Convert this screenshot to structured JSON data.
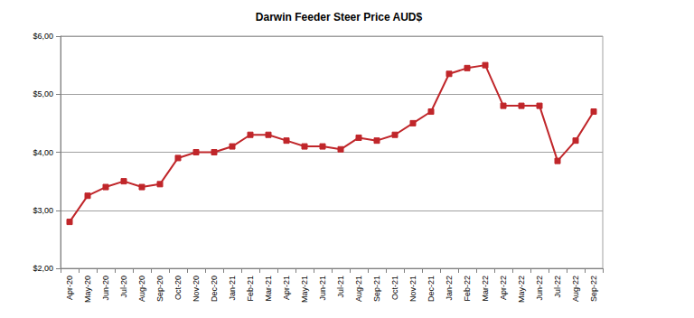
{
  "chart_data": {
    "type": "line",
    "title": "Darwin Feeder Steer Price AUD$",
    "categories": [
      "Apr-20",
      "May-20",
      "Jun-20",
      "Jul-20",
      "Aug-20",
      "Sep-20",
      "Oct-20",
      "Nov-20",
      "Dec-20",
      "Jan-21",
      "Feb-21",
      "Mar-21",
      "Apr-21",
      "May-21",
      "Jun-21",
      "Jul-21",
      "Aug-21",
      "Sep-21",
      "Oct-21",
      "Nov-21",
      "Dec-21",
      "Jan-22",
      "Feb-22",
      "Mar-22",
      "Apr-22",
      "May-22",
      "Jun-22",
      "Jul-22",
      "Aug-22",
      "Sep-22"
    ],
    "values": [
      2.8,
      3.25,
      3.4,
      3.5,
      3.4,
      3.45,
      3.9,
      4.0,
      4.0,
      4.1,
      4.3,
      4.3,
      4.2,
      4.1,
      4.1,
      4.05,
      4.25,
      4.2,
      4.3,
      4.5,
      4.7,
      5.35,
      5.45,
      5.5,
      4.8,
      4.8,
      4.8,
      3.85,
      4.2,
      4.7
    ],
    "color": "#c0262a",
    "marker": "square",
    "ylim": [
      2,
      6
    ],
    "yticks": [
      {
        "value": 2,
        "label": "$2,00"
      },
      {
        "value": 3,
        "label": "$3,00"
      },
      {
        "value": 4,
        "label": "$4,00"
      },
      {
        "value": 5,
        "label": "$5,00"
      },
      {
        "value": 6,
        "label": "$6,00"
      }
    ],
    "grid": true
  }
}
